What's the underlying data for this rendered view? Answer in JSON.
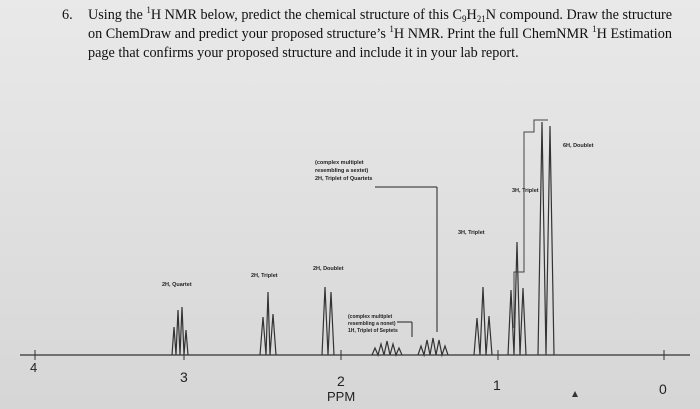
{
  "question": {
    "number": "6.",
    "part1": "Using the ",
    "sup1": "1",
    "part2": "H NMR below, predict the chemical structure of this C",
    "sub1": "9",
    "part3": "H",
    "sub2": "21",
    "part4": "N compound. Draw the structure on ChemDraw and predict your proposed structure’s ",
    "sup2": "1",
    "part5": "H NMR. Print the full ChemNMR ",
    "sup3": "1",
    "part6": "H Estimation page that confirms your proposed structure and include it in your lab report."
  },
  "axis": {
    "ticks": [
      {
        "label": "4",
        "ppm": 4
      },
      {
        "label": "3",
        "ppm": 3
      },
      {
        "label": "2",
        "ppm": 2
      },
      {
        "label": "1",
        "ppm": 1
      },
      {
        "label": "0",
        "ppm": 0
      }
    ],
    "xlabel": "PPM"
  },
  "annotations": {
    "a_quartet": "2H, Quartet",
    "b_triplet": "2H, Triplet",
    "c_doublet": "2H, Doublet",
    "d_sextet_1": "(complex multiplet",
    "d_sextet_2": "resembling a sextet)",
    "d_sextet_3": "2H, Triplet of Quartets",
    "e_nonet_1": "(complex multiplet",
    "e_nonet_2": "resembling a nonet)",
    "e_nonet_3": "1H, Triplet of Septets",
    "f_triplet": "3H, Triplet",
    "g_triplet": "3H, Triplet",
    "h_doublet": "6H, Doublet"
  },
  "colors": {
    "ink": "#111111",
    "spectrum": "#333333"
  }
}
